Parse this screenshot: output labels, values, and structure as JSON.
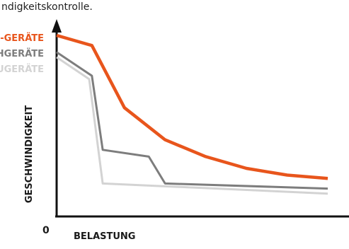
{
  "caption": "ndigkeitskontrolle.",
  "chart_data": {
    "type": "line",
    "title": "",
    "xlabel": "BELASTUNG",
    "ylabel": "GESCHWINDIGKEIT",
    "origin_label": "0",
    "xlim": [
      0,
      100
    ],
    "ylim": [
      0,
      100
    ],
    "series": [
      {
        "name": "-GERÄTE",
        "color": "#e8551c",
        "x": [
          0,
          13,
          25,
          40,
          55,
          70,
          85,
          100
        ],
        "y": [
          100,
          94,
          57,
          38,
          28,
          21,
          17,
          15
        ]
      },
      {
        "name": "HGERÄTE",
        "color": "#7d7d7d",
        "x": [
          0,
          13,
          17,
          34,
          40,
          100
        ],
        "y": [
          90,
          76,
          32,
          28,
          12,
          9
        ]
      },
      {
        "name": "UGERÄTE",
        "color": "#d3d3d3",
        "x": [
          0,
          12,
          17,
          100
        ],
        "y": [
          87,
          74,
          12,
          6
        ]
      }
    ]
  }
}
